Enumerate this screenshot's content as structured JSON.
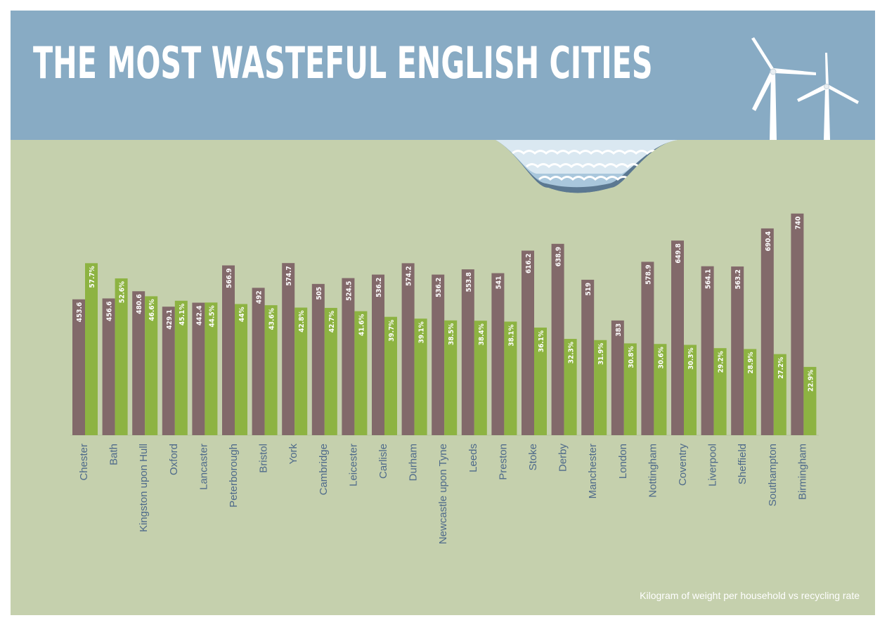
{
  "title": "THE MOST WASTEFUL ENGLISH CITIES",
  "caption": "Kilogram of weight per household vs recycling rate",
  "colors": {
    "sky": "#88abc4",
    "ground": "#c5d0ad",
    "waste_bar": "#82696a",
    "recycling_bar": "#8db342",
    "label": "#ffffff",
    "category_text": "#4e6a8a"
  },
  "chart_data": {
    "type": "bar",
    "categories": [
      "Chester",
      "Bath",
      "Kingston upon Hull",
      "Oxford",
      "Lancaster",
      "Peterborough",
      "Bristol",
      "York",
      "Cambridge",
      "Leicester",
      "Carlisle",
      "Durham",
      "Newcastle upon Tyne",
      "Leeds",
      "Preston",
      "Stoke",
      "Derby",
      "Manchester",
      "London",
      "Nottingham",
      "Coventry",
      "Liverpool",
      "Sheffield",
      "Southampton",
      "Birmingham"
    ],
    "series": [
      {
        "color": "#82696a",
        "values": [
          453.6,
          456.6,
          480.6,
          429.1,
          442.4,
          566.9,
          492,
          574.7,
          505,
          524.5,
          536.2,
          574.2,
          536.2,
          553.8,
          541,
          616.2,
          638.9,
          519,
          383,
          578.9,
          649.8,
          564.1,
          563.2,
          690.4,
          740
        ],
        "labels": [
          "453.6",
          "456.6",
          "480.6",
          "429.1",
          "442.4",
          "566.9",
          "492",
          "574.7",
          "505",
          "524.5",
          "536.2",
          "574.2",
          "536.2",
          "553.8",
          "541",
          "616.2",
          "638.9",
          "519",
          "383",
          "578.9",
          "649.8",
          "564.1",
          "563.2",
          "690.4",
          "740"
        ]
      },
      {
        "color": "#8db342",
        "values": [
          57.7,
          52.6,
          46.6,
          45.1,
          44.5,
          44,
          43.6,
          42.8,
          42.7,
          41.6,
          39.7,
          39.1,
          38.5,
          38.4,
          38.1,
          36.1,
          32.3,
          31.9,
          30.8,
          30.6,
          30.3,
          29.2,
          28.9,
          27.2,
          22.9
        ],
        "labels": [
          "57.7%",
          "52.6%",
          "46.6%",
          "45.1%",
          "44.5%",
          "44%",
          "43.6%",
          "42.8%",
          "42.7%",
          "41.6%",
          "39.7%",
          "39.1%",
          "38.5%",
          "38.4%",
          "38.1%",
          "36.1%",
          "32.3%",
          "31.9%",
          "30.8%",
          "30.6%",
          "30.3%",
          "29.2%",
          "28.9%",
          "27.2%",
          "22.9%"
        ]
      }
    ],
    "legend": "none",
    "grid": false
  }
}
